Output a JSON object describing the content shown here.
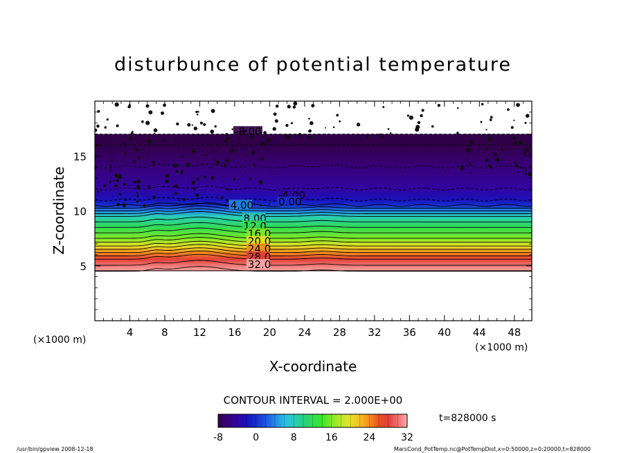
{
  "chart_data": {
    "type": "contour",
    "title": "disturbunce of potential temperature",
    "xlabel": "X-coordinate",
    "ylabel": "Z-coordinate",
    "x_unit": "(×1000 m)",
    "z_unit": "(×1000 m)",
    "xlim": [
      0,
      50
    ],
    "ylim": [
      0,
      20
    ],
    "x_ticks": [
      4,
      8,
      12,
      16,
      20,
      24,
      28,
      32,
      36,
      40,
      44,
      48
    ],
    "y_ticks": [
      5,
      10,
      15
    ],
    "contour_interval_text": "CONTOUR INTERVAL = 2.000E+00",
    "time_label": "t=828000 s",
    "colorbar": {
      "min": -8,
      "max": 32,
      "ticks": [
        "-8",
        "0",
        "8",
        "16",
        "24",
        "32"
      ]
    },
    "profile": {
      "z_top_of_data": 17,
      "z_bottom_of_data": 4.5,
      "levels": [
        {
          "z": 17.0,
          "value": -8
        },
        {
          "z": 16.0,
          "value": -8
        },
        {
          "z": 14.0,
          "value": -6
        },
        {
          "z": 12.0,
          "value": -4
        },
        {
          "z": 11.0,
          "value": -2
        },
        {
          "z": 10.5,
          "value": 0
        },
        {
          "z": 10.0,
          "value": 4
        },
        {
          "z": 9.5,
          "value": 8
        },
        {
          "z": 8.5,
          "value": 12
        },
        {
          "z": 7.5,
          "value": 16
        },
        {
          "z": 6.8,
          "value": 20
        },
        {
          "z": 6.2,
          "value": 24
        },
        {
          "z": 5.6,
          "value": 28
        },
        {
          "z": 4.5,
          "value": 32
        }
      ]
    },
    "contour_labels": [
      {
        "text": "-8.00",
        "x": 16,
        "z": 16.9
      },
      {
        "text": "-4.00",
        "x": 21,
        "z": 11.1
      },
      {
        "text": "0.00",
        "x": 21,
        "z": 10.5
      },
      {
        "text": "4.00",
        "x": 15.5,
        "z": 10.2
      },
      {
        "text": "8.00",
        "x": 17,
        "z": 9.0
      },
      {
        "text": "12.0",
        "x": 17,
        "z": 8.3
      },
      {
        "text": "16.0",
        "x": 17.5,
        "z": 7.6
      },
      {
        "text": "20.0",
        "x": 17.5,
        "z": 6.9
      },
      {
        "text": "24.0",
        "x": 17.5,
        "z": 6.2
      },
      {
        "text": "28.0",
        "x": 17.5,
        "z": 5.5
      },
      {
        "text": "32.0",
        "x": 17.5,
        "z": 4.8
      }
    ]
  },
  "footer": {
    "left": "/usr/bin/gpview  2008-12-18",
    "right": "MarsCond_PotTemp.nc@PotTempDist,x=0:50000,z=0:20000,t=828000"
  }
}
